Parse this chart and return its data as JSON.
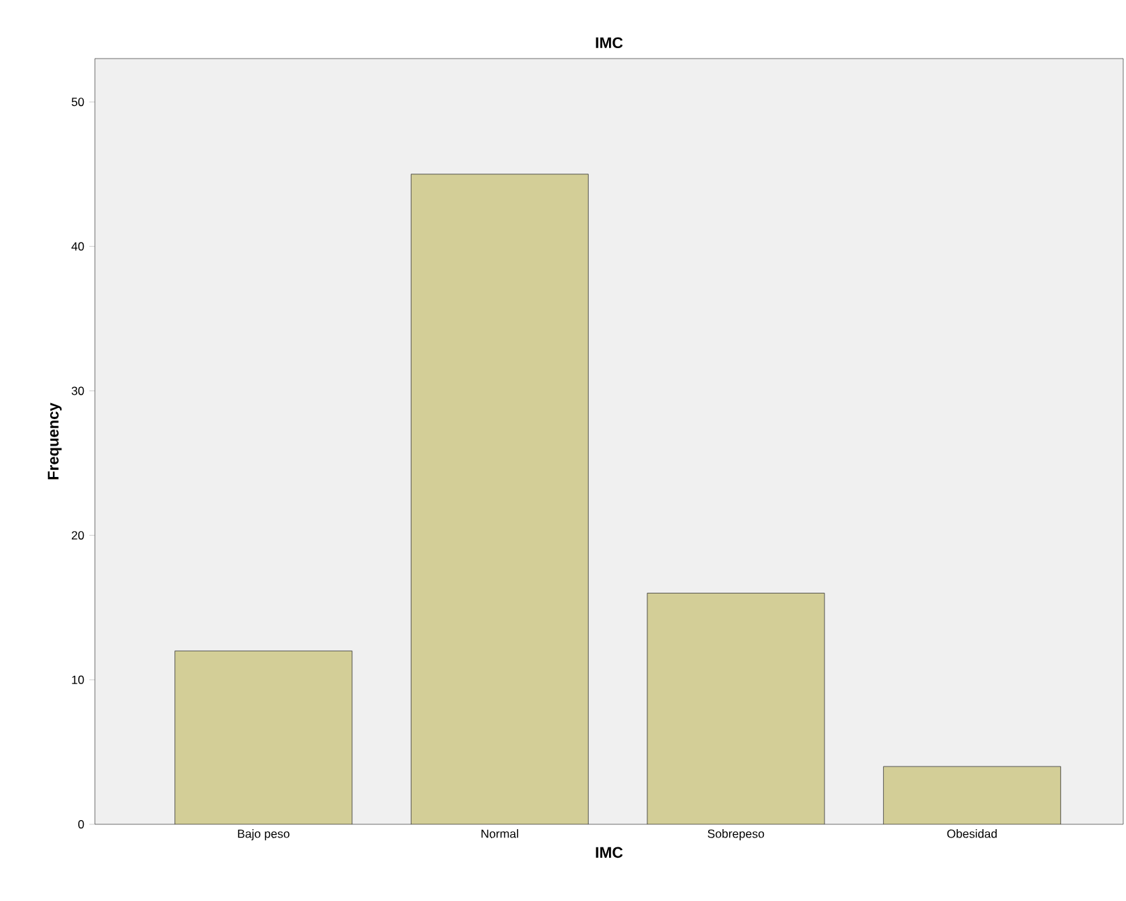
{
  "chart_data": {
    "type": "bar",
    "title": "IMC",
    "xlabel": "IMC",
    "ylabel": "Frequency",
    "categories": [
      "Bajo peso",
      "Normal",
      "Sobrepeso",
      "Obesidad"
    ],
    "values": [
      12,
      45,
      16,
      4
    ],
    "color": "#d3ce97",
    "ylim": [
      0,
      53
    ],
    "yticks": [
      0,
      10,
      20,
      30,
      40,
      50
    ]
  }
}
